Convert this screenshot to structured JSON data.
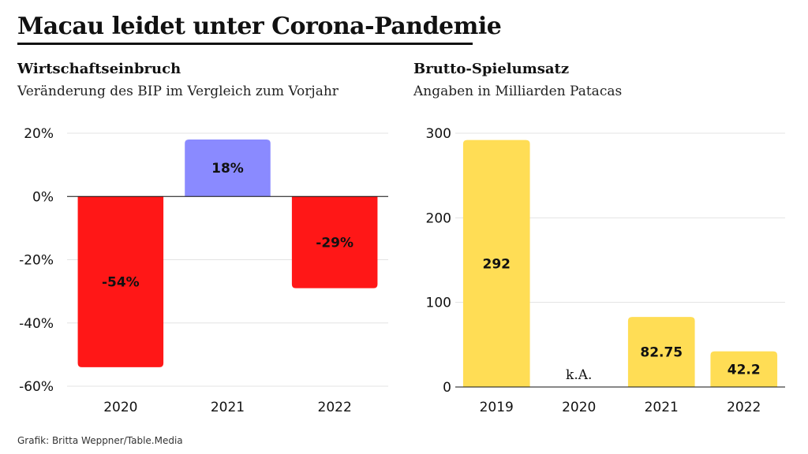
{
  "title": "Macau leidet unter Corona-Pandemie",
  "credit": "Grafik: Britta Weppner/Table.Media",
  "colors": {
    "negative": "#ff1717",
    "positive": "#8a8aff",
    "revenue": "#ffdd55",
    "grid": "#e3e3e3",
    "axis": "#111111"
  },
  "chart_data": [
    {
      "type": "bar",
      "title": "Wirtschaftseinbruch",
      "subtitle": "Veränderung des BIP im Vergleich zum Vorjahr",
      "unit": "%",
      "categories": [
        "2020",
        "2021",
        "2022"
      ],
      "values": [
        -54,
        18,
        -29
      ],
      "value_labels": [
        "-54%",
        "18%",
        "-29%"
      ],
      "ylim": [
        -60,
        20
      ],
      "yticks": [
        20,
        0,
        -20,
        -40,
        -60
      ],
      "ytick_labels": [
        "20%",
        "0%",
        "-20%",
        "-40%",
        "-60%"
      ],
      "grid": true
    },
    {
      "type": "bar",
      "title": "Brutto-Spielumsatz",
      "subtitle": "Angaben in Milliarden Patacas",
      "categories": [
        "2019",
        "2020",
        "2021",
        "2022"
      ],
      "values": [
        292,
        null,
        82.75,
        42.2
      ],
      "value_labels": [
        "292",
        "k.A.",
        "82.75",
        "42.2"
      ],
      "ylim": [
        0,
        300
      ],
      "yticks": [
        300,
        200,
        100,
        0
      ],
      "ytick_labels": [
        "300",
        "200",
        "100",
        "0"
      ],
      "grid": true
    }
  ]
}
